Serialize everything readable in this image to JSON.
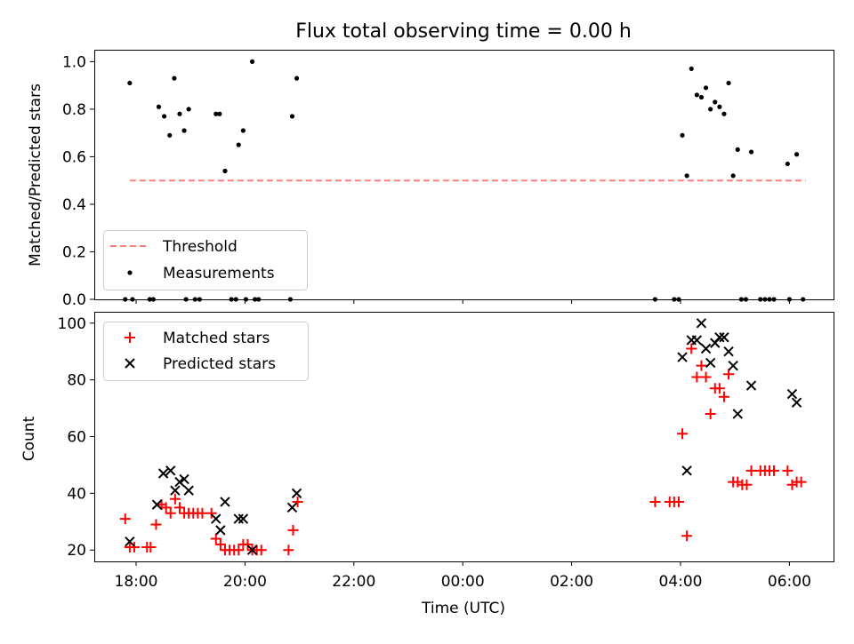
{
  "title": "Flux total observing time = 0.00 h",
  "chart_data": [
    {
      "type": "scatter",
      "ylabel": "Matched/Predicted stars",
      "xlabel": "",
      "ylim": [
        0,
        1.05
      ],
      "yticks": [
        "0.0",
        "0.2",
        "0.4",
        "0.6",
        "0.8",
        "1.0"
      ],
      "grid": false,
      "legend_position": "lower-left",
      "threshold": {
        "name": "Threshold",
        "value": 0.5,
        "x_start": "17:53",
        "x_end": "06:18",
        "color": "#ff7f7f"
      },
      "series": [
        {
          "name": "Measurements",
          "color": "#000000",
          "points": [
            [
              "17:53",
              0.91
            ],
            [
              "18:25",
              0.81
            ],
            [
              "18:31",
              0.77
            ],
            [
              "18:37",
              0.69
            ],
            [
              "18:42",
              0.93
            ],
            [
              "18:48",
              0.78
            ],
            [
              "18:53",
              0.71
            ],
            [
              "18:58",
              0.8
            ],
            [
              "19:28",
              0.78
            ],
            [
              "19:32",
              0.78
            ],
            [
              "19:38",
              0.54
            ],
            [
              "19:53",
              0.65
            ],
            [
              "19:58",
              0.71
            ],
            [
              "20:08",
              1.0
            ],
            [
              "20:52",
              0.77
            ],
            [
              "20:57",
              0.93
            ],
            [
              "04:02",
              0.69
            ],
            [
              "04:07",
              0.52
            ],
            [
              "04:12",
              0.97
            ],
            [
              "04:18",
              0.86
            ],
            [
              "04:23",
              0.85
            ],
            [
              "04:28",
              0.89
            ],
            [
              "04:33",
              0.8
            ],
            [
              "04:38",
              0.83
            ],
            [
              "04:43",
              0.81
            ],
            [
              "04:48",
              0.78
            ],
            [
              "04:53",
              0.91
            ],
            [
              "04:58",
              0.52
            ],
            [
              "05:03",
              0.63
            ],
            [
              "05:18",
              0.62
            ],
            [
              "05:58",
              0.57
            ],
            [
              "06:08",
              0.61
            ],
            [
              "17:48",
              0.0
            ],
            [
              "17:56",
              0.0
            ],
            [
              "18:15",
              0.0
            ],
            [
              "18:19",
              0.0
            ],
            [
              "18:55",
              0.0
            ],
            [
              "19:05",
              0.0
            ],
            [
              "19:10",
              0.0
            ],
            [
              "19:45",
              0.0
            ],
            [
              "19:50",
              0.0
            ],
            [
              "20:01",
              0.0
            ],
            [
              "20:11",
              0.0
            ],
            [
              "20:15",
              0.0
            ],
            [
              "20:50",
              0.0
            ],
            [
              "03:32",
              0.0
            ],
            [
              "03:53",
              0.0
            ],
            [
              "03:58",
              0.0
            ],
            [
              "05:07",
              0.0
            ],
            [
              "05:12",
              0.0
            ],
            [
              "05:28",
              0.0
            ],
            [
              "05:33",
              0.0
            ],
            [
              "05:38",
              0.0
            ],
            [
              "05:43",
              0.0
            ],
            [
              "06:00",
              0.0
            ],
            [
              "06:15",
              0.0
            ]
          ]
        }
      ]
    },
    {
      "type": "scatter",
      "ylabel": "Count",
      "xlabel": "Time (UTC)",
      "ylim": [
        16,
        104
      ],
      "yticks": [
        "20",
        "40",
        "60",
        "80",
        "100"
      ],
      "xticks": [
        "18:00",
        "20:00",
        "22:00",
        "00:00",
        "02:00",
        "04:00",
        "06:00"
      ],
      "grid": false,
      "legend_position": "upper-left",
      "series": [
        {
          "name": "Matched stars",
          "marker": "+",
          "color": "#ff0000",
          "points": [
            [
              "17:48",
              31
            ],
            [
              "17:53",
              21
            ],
            [
              "17:58",
              21
            ],
            [
              "18:12",
              21
            ],
            [
              "18:16",
              21
            ],
            [
              "18:22",
              29
            ],
            [
              "18:28",
              36
            ],
            [
              "18:33",
              35
            ],
            [
              "18:38",
              33
            ],
            [
              "18:43",
              38
            ],
            [
              "18:48",
              35
            ],
            [
              "18:53",
              33
            ],
            [
              "18:58",
              33
            ],
            [
              "19:03",
              33
            ],
            [
              "19:08",
              33
            ],
            [
              "19:13",
              33
            ],
            [
              "19:23",
              33
            ],
            [
              "19:28",
              24
            ],
            [
              "19:33",
              22
            ],
            [
              "19:38",
              20
            ],
            [
              "19:43",
              20
            ],
            [
              "19:48",
              20
            ],
            [
              "19:53",
              20
            ],
            [
              "19:58",
              22
            ],
            [
              "20:03",
              22
            ],
            [
              "20:08",
              20
            ],
            [
              "20:13",
              20
            ],
            [
              "20:18",
              20
            ],
            [
              "20:48",
              20
            ],
            [
              "20:53",
              27
            ],
            [
              "20:58",
              37
            ],
            [
              "03:32",
              37
            ],
            [
              "03:48",
              37
            ],
            [
              "03:53",
              37
            ],
            [
              "03:58",
              37
            ],
            [
              "04:02",
              61
            ],
            [
              "04:07",
              25
            ],
            [
              "04:12",
              91
            ],
            [
              "04:18",
              81
            ],
            [
              "04:23",
              85
            ],
            [
              "04:28",
              81
            ],
            [
              "04:33",
              68
            ],
            [
              "04:38",
              77
            ],
            [
              "04:43",
              77
            ],
            [
              "04:48",
              74
            ],
            [
              "04:53",
              82
            ],
            [
              "04:58",
              44
            ],
            [
              "05:03",
              44
            ],
            [
              "05:08",
              43
            ],
            [
              "05:13",
              43
            ],
            [
              "05:18",
              48
            ],
            [
              "05:28",
              48
            ],
            [
              "05:33",
              48
            ],
            [
              "05:38",
              48
            ],
            [
              "05:43",
              48
            ],
            [
              "05:58",
              48
            ],
            [
              "06:03",
              43
            ],
            [
              "06:08",
              44
            ],
            [
              "06:13",
              44
            ]
          ]
        },
        {
          "name": "Predicted stars",
          "marker": "x",
          "color": "#000000",
          "points": [
            [
              "17:53",
              23
            ],
            [
              "18:23",
              36
            ],
            [
              "18:30",
              47
            ],
            [
              "18:38",
              48
            ],
            [
              "18:43",
              41
            ],
            [
              "18:48",
              44
            ],
            [
              "18:53",
              45
            ],
            [
              "18:58",
              41
            ],
            [
              "19:28",
              31
            ],
            [
              "19:33",
              27
            ],
            [
              "19:38",
              37
            ],
            [
              "19:53",
              31
            ],
            [
              "19:58",
              31
            ],
            [
              "20:08",
              20
            ],
            [
              "20:52",
              35
            ],
            [
              "20:57",
              40
            ],
            [
              "04:02",
              88
            ],
            [
              "04:07",
              48
            ],
            [
              "04:12",
              94
            ],
            [
              "04:18",
              94
            ],
            [
              "04:23",
              100
            ],
            [
              "04:28",
              91
            ],
            [
              "04:33",
              86
            ],
            [
              "04:38",
              93
            ],
            [
              "04:43",
              95
            ],
            [
              "04:48",
              95
            ],
            [
              "04:53",
              90
            ],
            [
              "04:58",
              85
            ],
            [
              "05:03",
              68
            ],
            [
              "05:18",
              78
            ],
            [
              "06:03",
              75
            ],
            [
              "06:08",
              72
            ]
          ]
        }
      ]
    }
  ]
}
